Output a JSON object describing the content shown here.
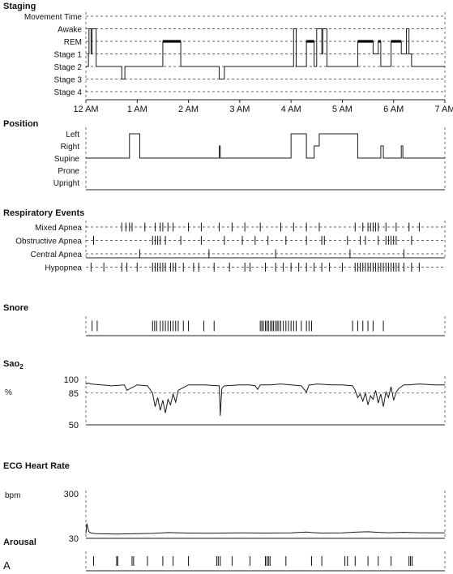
{
  "chart_data": [
    {
      "type": "line",
      "title": "Staging",
      "x_ticks": [
        "12 AM",
        "1 AM",
        "2 AM",
        "3 AM",
        "4 AM",
        "5 AM",
        "6 AM",
        "7 AM"
      ],
      "xlim": [
        0,
        7
      ],
      "categories": [
        "Movement Time",
        "Awake",
        "REM",
        "Stage 1",
        "Stage 2",
        "Stage 3",
        "Stage 4"
      ],
      "step_hours": [
        0,
        0.05,
        0.06,
        0.1,
        0.12,
        0.2,
        0.7,
        0.76,
        1.5,
        1.85,
        2.6,
        2.7,
        4.05,
        4.1,
        4.3,
        4.45,
        4.5,
        4.6,
        4.62,
        4.7,
        5.3,
        5.6,
        5.7,
        5.75,
        5.95,
        6.15,
        6.25,
        6.3,
        6.35,
        7.0
      ],
      "step_stage": [
        "Stage 2",
        "Stage 1",
        "Awake",
        "Stage 1",
        "Awake",
        "Stage 2",
        "Stage 3",
        "Stage 2",
        "REM",
        "Stage 2",
        "Stage 3",
        "Stage 2",
        "Awake",
        "Stage 2",
        "REM",
        "Stage 2",
        "Awake",
        "Stage 1",
        "Awake",
        "Stage 2",
        "REM",
        "Stage 1",
        "REM",
        "Stage 2",
        "REM",
        "Stage 1",
        "Awake",
        "Stage 1",
        "Stage 2",
        "Stage 2"
      ],
      "rem_bars": [
        [
          1.5,
          1.85
        ],
        [
          4.3,
          4.45
        ],
        [
          5.3,
          5.6
        ],
        [
          5.7,
          5.75
        ],
        [
          5.95,
          6.15
        ]
      ]
    },
    {
      "type": "line",
      "title": "Position",
      "categories": [
        "Left",
        "Right",
        "Supine",
        "Prone",
        "Upright"
      ],
      "step_hours": [
        0,
        0.85,
        1.05,
        2.6,
        2.62,
        4.0,
        4.3,
        4.45,
        4.55,
        5.3,
        5.75,
        5.8,
        6.15,
        6.18,
        7.0
      ],
      "step_position": [
        "Supine",
        "Left",
        "Supine",
        "Right",
        "Supine",
        "Left",
        "Supine",
        "Right",
        "Left",
        "Supine",
        "Right",
        "Supine",
        "Right",
        "Supine",
        "Supine"
      ]
    },
    {
      "type": "scatter",
      "title": "Respiratory Events",
      "categories": [
        "Mixed Apnea",
        "Obstructive Apnea",
        "Central Apnea",
        "Hypopnea"
      ],
      "series": [
        {
          "name": "Mixed Apnea",
          "x": [
            0.7,
            0.78,
            0.85,
            0.9,
            1.15,
            1.35,
            1.45,
            1.5,
            1.6,
            1.7,
            2.0,
            2.25,
            2.6,
            2.85,
            3.1,
            3.4,
            3.8,
            4.05,
            4.3,
            4.55,
            5.25,
            5.4,
            5.5,
            5.55,
            5.6,
            5.65,
            5.7,
            5.85,
            6.05,
            6.3,
            6.5
          ]
        },
        {
          "name": "Obstructive Apnea",
          "x": [
            0.15,
            1.3,
            1.35,
            1.4,
            1.45,
            1.55,
            1.85,
            2.25,
            2.7,
            3.05,
            3.3,
            3.55,
            3.9,
            4.3,
            4.6,
            4.65,
            5.1,
            5.35,
            5.45,
            5.7,
            5.85,
            5.9,
            5.95,
            6.0,
            6.05,
            6.35
          ]
        },
        {
          "name": "Central Apnea",
          "x": [
            1.05,
            2.4,
            3.7,
            5.15,
            6.2
          ]
        },
        {
          "name": "Hypopnea",
          "x": [
            0.1,
            0.35,
            0.7,
            0.8,
            1.0,
            1.3,
            1.35,
            1.4,
            1.45,
            1.5,
            1.55,
            1.65,
            1.7,
            1.75,
            1.9,
            2.1,
            2.2,
            2.5,
            2.8,
            3.1,
            3.2,
            3.5,
            3.7,
            3.85,
            4.0,
            4.15,
            4.3,
            4.45,
            4.6,
            4.75,
            5.0,
            5.25,
            5.3,
            5.35,
            5.4,
            5.45,
            5.5,
            5.55,
            5.6,
            5.65,
            5.7,
            5.75,
            5.8,
            5.85,
            5.9,
            5.95,
            6.0,
            6.05,
            6.1,
            6.2,
            6.35,
            6.5
          ]
        }
      ]
    },
    {
      "type": "scatter",
      "title": "Snore",
      "series": [
        {
          "name": "Snore",
          "x": [
            0.12,
            0.22,
            1.3,
            1.34,
            1.38,
            1.45,
            1.5,
            1.55,
            1.6,
            1.65,
            1.7,
            1.75,
            1.8,
            1.9,
            2.0,
            2.3,
            2.5,
            3.4,
            3.43,
            3.46,
            3.5,
            3.53,
            3.56,
            3.6,
            3.63,
            3.66,
            3.7,
            3.73,
            3.76,
            3.8,
            3.85,
            3.9,
            3.95,
            4.0,
            4.05,
            4.1,
            4.2,
            4.3,
            4.35,
            4.4,
            5.2,
            5.3,
            5.4,
            5.5,
            5.6,
            5.8
          ]
        }
      ]
    },
    {
      "type": "line",
      "title": "Sao2",
      "ylabel": "%",
      "y_ticks": [
        100,
        85,
        50
      ],
      "ylim": [
        50,
        100
      ],
      "reference_line": 85,
      "x": [
        0,
        0.05,
        0.1,
        0.3,
        0.5,
        0.75,
        0.8,
        1.0,
        1.2,
        1.3,
        1.35,
        1.4,
        1.45,
        1.5,
        1.55,
        1.6,
        1.65,
        1.7,
        1.75,
        1.8,
        1.9,
        2.0,
        2.3,
        2.6,
        2.62,
        2.65,
        2.7,
        3.0,
        3.2,
        3.3,
        3.35,
        3.4,
        3.6,
        3.8,
        4.0,
        4.2,
        4.3,
        4.35,
        4.4,
        4.5,
        4.8,
        5.0,
        5.2,
        5.25,
        5.3,
        5.35,
        5.4,
        5.45,
        5.5,
        5.55,
        5.6,
        5.65,
        5.7,
        5.75,
        5.8,
        5.85,
        5.9,
        5.95,
        6.0,
        6.05,
        6.1,
        6.2,
        6.3,
        6.5,
        6.8,
        7.0
      ],
      "values": [
        95,
        96,
        95,
        94,
        93,
        94,
        88,
        94,
        93,
        85,
        70,
        80,
        66,
        77,
        63,
        78,
        72,
        84,
        75,
        88,
        91,
        94,
        94,
        93,
        60,
        90,
        93,
        94,
        94,
        93,
        89,
        94,
        94,
        95,
        94,
        93,
        86,
        94,
        94,
        95,
        94,
        94,
        93,
        88,
        80,
        84,
        76,
        85,
        72,
        82,
        78,
        88,
        74,
        84,
        70,
        86,
        80,
        92,
        77,
        86,
        90,
        94,
        94,
        95,
        94,
        94
      ]
    },
    {
      "type": "line",
      "title": "ECG Heart Rate",
      "ylabel": "bpm",
      "y_ticks": [
        300,
        30
      ],
      "ylim": [
        30,
        300
      ],
      "x": [
        0,
        0.02,
        0.04,
        0.06,
        0.1,
        0.2,
        0.4,
        0.6,
        0.8,
        1.0,
        1.3,
        1.5,
        1.6,
        2.0,
        2.5,
        3.0,
        3.5,
        4.0,
        4.3,
        4.4,
        4.6,
        5.0,
        5.3,
        5.5,
        5.7,
        5.9,
        6.2,
        6.5,
        7.0
      ],
      "values": [
        60,
        120,
        90,
        70,
        62,
        58,
        57,
        56,
        57,
        58,
        60,
        63,
        65,
        62,
        61,
        63,
        62,
        63,
        68,
        65,
        62,
        63,
        68,
        70,
        66,
        64,
        66,
        64,
        63
      ]
    },
    {
      "type": "scatter",
      "title": "Arousal",
      "series": [
        {
          "name": "Arousal",
          "x": [
            0.15,
            0.6,
            0.62,
            0.9,
            0.93,
            1.2,
            1.5,
            1.7,
            2.0,
            2.55,
            2.58,
            2.62,
            2.85,
            3.2,
            3.5,
            3.53,
            3.56,
            3.59,
            3.9,
            4.4,
            4.6,
            5.05,
            5.1,
            5.25,
            5.5,
            5.7,
            5.95,
            6.3,
            6.33,
            6.36
          ]
        }
      ]
    }
  ],
  "panels": {
    "staging_title": "Staging",
    "position_title": "Position",
    "respiratory_title": "Respiratory Events",
    "snore_title": "Snore",
    "sao2_title": "Sao",
    "sao2_sub": "2",
    "sao2_unit": "%",
    "hr_title": "ECG Heart Rate",
    "hr_unit": "bpm",
    "arousal_title": "Arousal",
    "figure_label": "A"
  }
}
